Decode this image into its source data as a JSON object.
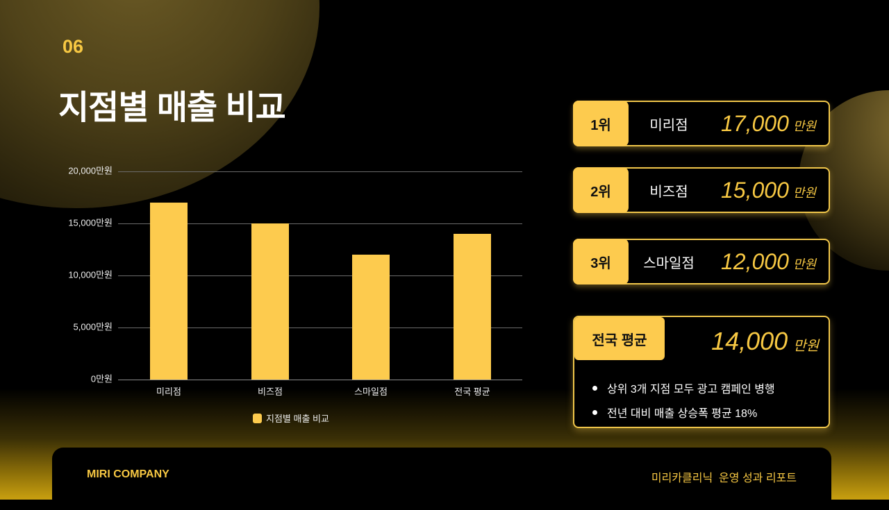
{
  "header": {
    "section_number": "06",
    "title": "지점별 매출 비교"
  },
  "chart_data": {
    "type": "bar",
    "title": "",
    "categories": [
      "미리점",
      "비즈점",
      "스마일점",
      "전국 평균"
    ],
    "series": [
      {
        "name": "지점별 매출 비교",
        "values": [
          17000,
          15000,
          12000,
          14000
        ],
        "color": "#fdcb4e"
      }
    ],
    "xlabel": "",
    "ylabel": "",
    "ylim": [
      0,
      20000
    ],
    "unit": "만원",
    "yticks": [
      "0만원",
      "5,000만원",
      "10,000만원",
      "15,000만원",
      "20,000만원"
    ],
    "grid": true,
    "legend_position": "bottom"
  },
  "ranking": [
    {
      "rank": "1위",
      "name": "미리점",
      "value": "17,000",
      "unit": "만원"
    },
    {
      "rank": "2위",
      "name": "비즈점",
      "value": "15,000",
      "unit": "만원"
    },
    {
      "rank": "3위",
      "name": "스마일점",
      "value": "12,000",
      "unit": "만원"
    }
  ],
  "average": {
    "label": "전국 평균",
    "value": "14,000",
    "unit": "만원",
    "notes": [
      "상위 3개 지점 모두 광고 캠페인 병행",
      "전년 대비 매출 상승폭 평균 18%"
    ]
  },
  "footer": {
    "company": "MIRI COMPANY",
    "report": "미리카클리닉  운영 성과 리포트"
  },
  "colors": {
    "accent": "#fdcb4e",
    "accent_text": "#f7c843",
    "background": "#000000"
  }
}
